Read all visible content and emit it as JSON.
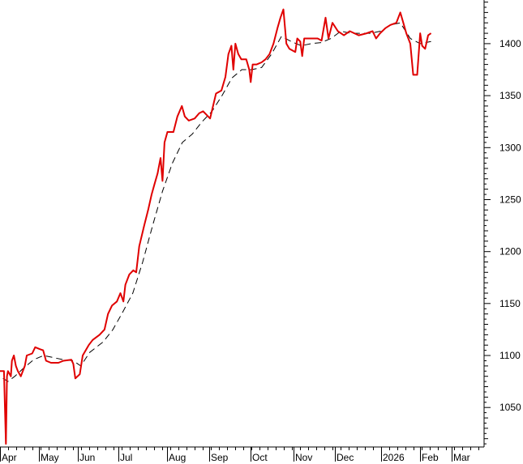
{
  "chart_data": {
    "type": "line",
    "title": "",
    "xlabel": "",
    "ylabel": "",
    "ylim": [
      1012,
      1442
    ],
    "grid": false,
    "legend": "none",
    "y_axis_side": "right",
    "x_tick_labels": [
      "Apr",
      "May",
      "Jun",
      "Jul",
      "Aug",
      "Sep",
      "Oct",
      "Nov",
      "Dec",
      "2026",
      "Feb",
      "Mar"
    ],
    "y_ticks": [
      1050,
      1100,
      1150,
      1200,
      1250,
      1300,
      1350,
      1400
    ],
    "y_tick_labels": [
      "1050",
      "1100",
      "1150",
      "1200",
      "1250",
      "1300",
      "1350",
      "1400"
    ],
    "x_range": [
      2025.252,
      2026.229
    ],
    "series": [
      {
        "style": "solid",
        "color": "#e00000",
        "points": [
          [
            2025.252,
            1085
          ],
          [
            2025.26,
            1085
          ],
          [
            2025.264,
            1015
          ],
          [
            2025.266,
            1080
          ],
          [
            2025.268,
            1085
          ],
          [
            2025.274,
            1080
          ],
          [
            2025.276,
            1095
          ],
          [
            2025.28,
            1100
          ],
          [
            2025.284,
            1090
          ],
          [
            2025.288,
            1085
          ],
          [
            2025.294,
            1080
          ],
          [
            2025.302,
            1090
          ],
          [
            2025.306,
            1100
          ],
          [
            2025.317,
            1102
          ],
          [
            2025.323,
            1108
          ],
          [
            2025.333,
            1106
          ],
          [
            2025.339,
            1105
          ],
          [
            2025.345,
            1095
          ],
          [
            2025.355,
            1093
          ],
          [
            2025.37,
            1093
          ],
          [
            2025.38,
            1095
          ],
          [
            2025.396,
            1096
          ],
          [
            2025.4,
            1092
          ],
          [
            2025.404,
            1078
          ],
          [
            2025.413,
            1082
          ],
          [
            2025.419,
            1100
          ],
          [
            2025.431,
            1110
          ],
          [
            2025.439,
            1115
          ],
          [
            2025.453,
            1120
          ],
          [
            2025.463,
            1125
          ],
          [
            2025.47,
            1140
          ],
          [
            2025.478,
            1148
          ],
          [
            2025.488,
            1152
          ],
          [
            2025.495,
            1160
          ],
          [
            2025.501,
            1152
          ],
          [
            2025.505,
            1168
          ],
          [
            2025.513,
            1178
          ],
          [
            2025.521,
            1182
          ],
          [
            2025.527,
            1180
          ],
          [
            2025.533,
            1205
          ],
          [
            2025.543,
            1225
          ],
          [
            2025.551,
            1240
          ],
          [
            2025.558,
            1255
          ],
          [
            2025.564,
            1265
          ],
          [
            2025.57,
            1275
          ],
          [
            2025.576,
            1290
          ],
          [
            2025.58,
            1268
          ],
          [
            2025.584,
            1305
          ],
          [
            2025.59,
            1315
          ],
          [
            2025.602,
            1315
          ],
          [
            2025.61,
            1330
          ],
          [
            2025.619,
            1340
          ],
          [
            2025.625,
            1330
          ],
          [
            2025.633,
            1326
          ],
          [
            2025.645,
            1328
          ],
          [
            2025.654,
            1333
          ],
          [
            2025.662,
            1335
          ],
          [
            2025.676,
            1328
          ],
          [
            2025.688,
            1352
          ],
          [
            2025.699,
            1355
          ],
          [
            2025.707,
            1368
          ],
          [
            2025.713,
            1390
          ],
          [
            2025.719,
            1398
          ],
          [
            2025.723,
            1375
          ],
          [
            2025.727,
            1400
          ],
          [
            2025.733,
            1390
          ],
          [
            2025.739,
            1385
          ],
          [
            2025.749,
            1385
          ],
          [
            2025.755,
            1375
          ],
          [
            2025.758,
            1363
          ],
          [
            2025.762,
            1380
          ],
          [
            2025.77,
            1380
          ],
          [
            2025.78,
            1382
          ],
          [
            2025.788,
            1385
          ],
          [
            2025.796,
            1390
          ],
          [
            2025.804,
            1400
          ],
          [
            2025.812,
            1415
          ],
          [
            2025.818,
            1425
          ],
          [
            2025.824,
            1433
          ],
          [
            2025.83,
            1400
          ],
          [
            2025.836,
            1395
          ],
          [
            2025.848,
            1392
          ],
          [
            2025.852,
            1405
          ],
          [
            2025.858,
            1402
          ],
          [
            2025.862,
            1388
          ],
          [
            2025.866,
            1405
          ],
          [
            2025.893,
            1405
          ],
          [
            2025.901,
            1403
          ],
          [
            2025.909,
            1425
          ],
          [
            2025.915,
            1405
          ],
          [
            2025.923,
            1420
          ],
          [
            2025.934,
            1412
          ],
          [
            2025.946,
            1408
          ],
          [
            2025.958,
            1412
          ],
          [
            2025.976,
            1408
          ],
          [
            2025.992,
            1410
          ],
          [
            2026.004,
            1412
          ],
          [
            2026.011,
            1405
          ],
          [
            2026.019,
            1410
          ],
          [
            2026.03,
            1415
          ],
          [
            2026.04,
            1418
          ],
          [
            2026.052,
            1420
          ],
          [
            2026.06,
            1430
          ],
          [
            2026.066,
            1420
          ],
          [
            2026.072,
            1410
          ],
          [
            2026.08,
            1400
          ],
          [
            2026.086,
            1370
          ],
          [
            2026.094,
            1370
          ],
          [
            2026.1,
            1410
          ],
          [
            2026.104,
            1398
          ],
          [
            2026.11,
            1395
          ],
          [
            2026.116,
            1408
          ],
          [
            2026.122,
            1410
          ]
        ]
      },
      {
        "style": "dashed",
        "color": "#000000",
        "points": [
          [
            2025.258,
            1078
          ],
          [
            2025.268,
            1075
          ],
          [
            2025.282,
            1080
          ],
          [
            2025.3,
            1088
          ],
          [
            2025.32,
            1096
          ],
          [
            2025.34,
            1100
          ],
          [
            2025.36,
            1098
          ],
          [
            2025.38,
            1096
          ],
          [
            2025.4,
            1095
          ],
          [
            2025.415,
            1090
          ],
          [
            2025.433,
            1103
          ],
          [
            2025.46,
            1113
          ],
          [
            2025.48,
            1125
          ],
          [
            2025.5,
            1142
          ],
          [
            2025.52,
            1160
          ],
          [
            2025.54,
            1190
          ],
          [
            2025.56,
            1225
          ],
          [
            2025.58,
            1258
          ],
          [
            2025.6,
            1285
          ],
          [
            2025.62,
            1305
          ],
          [
            2025.64,
            1313
          ],
          [
            2025.66,
            1325
          ],
          [
            2025.68,
            1335
          ],
          [
            2025.7,
            1350
          ],
          [
            2025.72,
            1367
          ],
          [
            2025.74,
            1375
          ],
          [
            2025.76,
            1375
          ],
          [
            2025.78,
            1377
          ],
          [
            2025.8,
            1390
          ],
          [
            2025.82,
            1407
          ],
          [
            2025.84,
            1402
          ],
          [
            2025.86,
            1398
          ],
          [
            2025.88,
            1400
          ],
          [
            2025.9,
            1401
          ],
          [
            2025.92,
            1405
          ],
          [
            2025.94,
            1412
          ],
          [
            2025.96,
            1410
          ],
          [
            2025.98,
            1410
          ],
          [
            2026.0,
            1410
          ],
          [
            2026.02,
            1412
          ],
          [
            2026.04,
            1418
          ],
          [
            2026.06,
            1420
          ],
          [
            2026.08,
            1405
          ],
          [
            2026.1,
            1400
          ],
          [
            2026.122,
            1402
          ]
        ]
      }
    ]
  }
}
